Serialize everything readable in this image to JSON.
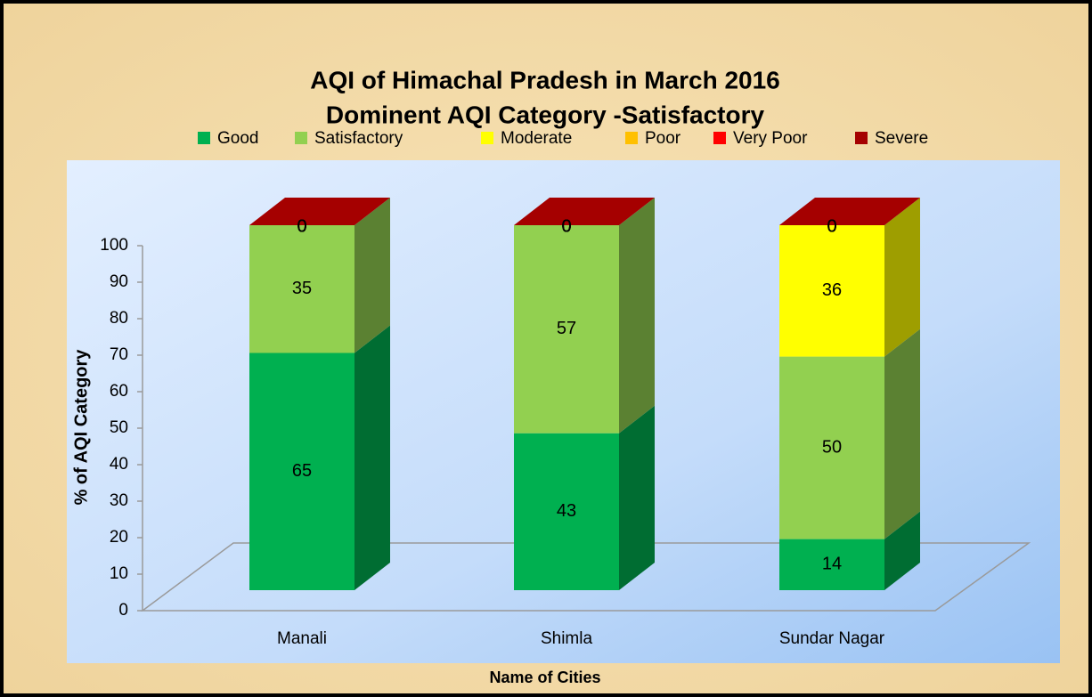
{
  "chart_data": {
    "type": "bar3d_stacked",
    "title": "AQI of Himachal Pradesh in March 2016",
    "subtitle": "Dominent AQI Category -Satisfactory",
    "x_label": "Name of Cities",
    "y_label": "% of AQI Category",
    "categories": [
      "Manali",
      "Shimla",
      "Sundar Nagar"
    ],
    "series": [
      {
        "name": "Good",
        "color": "#00b050",
        "values": [
          65,
          43,
          14
        ]
      },
      {
        "name": "Satisfactory",
        "color": "#92d050",
        "values": [
          35,
          57,
          50
        ]
      },
      {
        "name": "Moderate",
        "color": "#ffff00",
        "values": [
          0,
          0,
          36
        ]
      },
      {
        "name": "Poor",
        "color": "#ffc000",
        "values": [
          0,
          0,
          0
        ]
      },
      {
        "name": "Very Poor",
        "color": "#ff0000",
        "values": [
          0,
          0,
          0
        ]
      },
      {
        "name": "Severe",
        "color": "#a50000",
        "values": [
          0,
          0,
          0
        ]
      }
    ],
    "ylim": [
      0,
      100
    ],
    "yticks": [
      0,
      10,
      20,
      30,
      40,
      50,
      60,
      70,
      80,
      90,
      100
    ],
    "legend": "top"
  }
}
